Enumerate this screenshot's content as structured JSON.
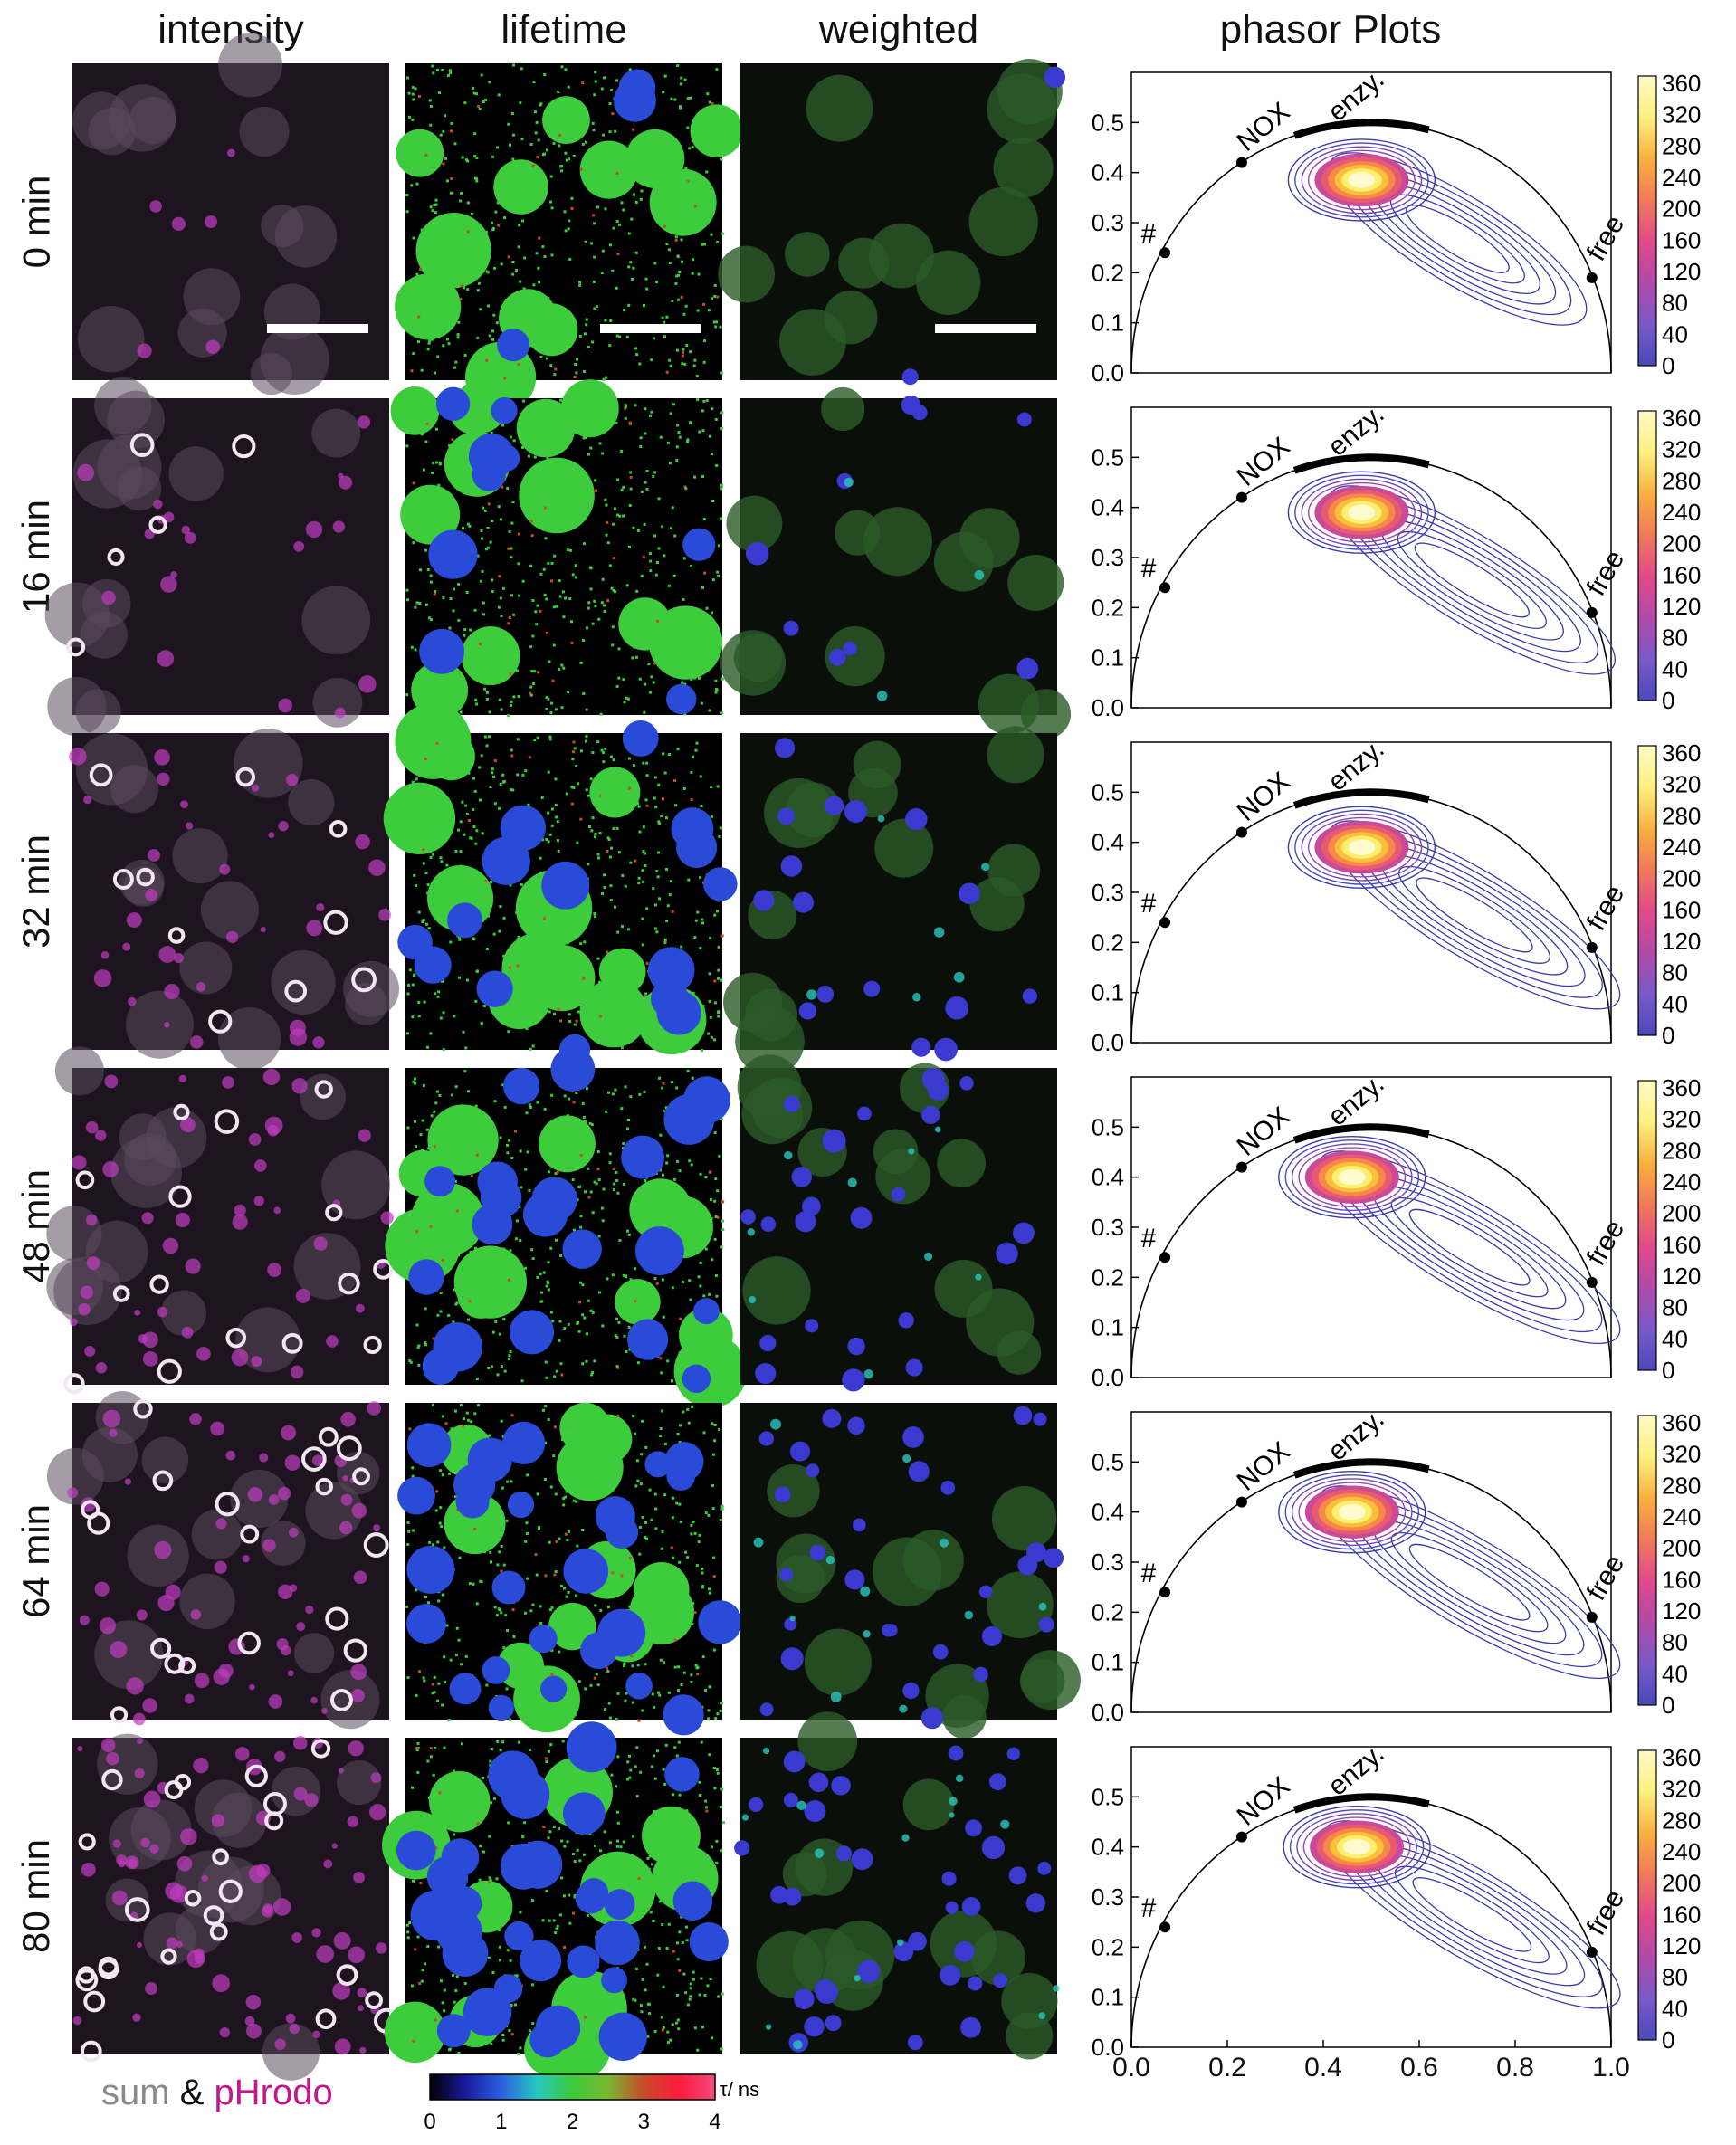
{
  "columns": [
    "intensity",
    "lifetime",
    "weighted",
    "phasor Plots"
  ],
  "rows": [
    {
      "label": "0 min",
      "stage": 0
    },
    {
      "label": "16 min",
      "stage": 1
    },
    {
      "label": "32 min",
      "stage": 2
    },
    {
      "label": "48 min",
      "stage": 3
    },
    {
      "label": "64 min",
      "stage": 4
    },
    {
      "label": "80 min",
      "stage": 5
    }
  ],
  "intensity_legend": {
    "sum": "sum",
    "amp": "&",
    "phrodo": "pHrodo",
    "sum_color": "#8a8a8a",
    "phrodo_color": "#c2188a"
  },
  "lifetime_colorbar": {
    "label": "τ/ ns",
    "ticks": [
      "0",
      "1",
      "2",
      "3",
      "4"
    ],
    "colors": [
      "#000000",
      "#1a1a9e",
      "#2a5fe0",
      "#28c8c0",
      "#3ccc3c",
      "#7ab832",
      "#c84a2a",
      "#ff1a3c",
      "#f04a7a"
    ]
  },
  "phasor": {
    "yticks": [
      "0.0",
      "0.1",
      "0.2",
      "0.3",
      "0.4",
      "0.5"
    ],
    "xticks": [
      "0.0",
      "0.2",
      "0.4",
      "0.6",
      "0.8",
      "1.0"
    ],
    "labels": {
      "nox": "NOX",
      "enzy": "enzy.",
      "free": "free",
      "hash": "#"
    },
    "points": [
      {
        "g": 0.07,
        "s": 0.24
      },
      {
        "g": 0.23,
        "s": 0.42
      },
      {
        "g": 0.96,
        "s": 0.19
      }
    ],
    "cbar_ticks": [
      "0",
      "40",
      "80",
      "120",
      "160",
      "200",
      "240",
      "280",
      "320",
      "360"
    ],
    "cbar_colors": [
      "#4a4ab8",
      "#7a5ac8",
      "#b04aa8",
      "#e04a8a",
      "#f07a5a",
      "#f8b040",
      "#fcf080",
      "#fffac8"
    ]
  },
  "chart_data": [
    {
      "type": "heatmap",
      "title": "phasor Plots",
      "panel": "0 min",
      "xlim": [
        0,
        1
      ],
      "ylim": [
        0,
        0.6
      ],
      "xticks": [
        0.0,
        0.2,
        0.4,
        0.6,
        0.8,
        1.0
      ],
      "yticks": [
        0.0,
        0.1,
        0.2,
        0.3,
        0.4,
        0.5
      ],
      "colorbar_range": [
        0,
        360
      ],
      "peak": {
        "g": 0.48,
        "s": 0.385
      },
      "tail_end": {
        "g": 0.88,
        "s": 0.15
      }
    },
    {
      "type": "heatmap",
      "title": "phasor Plots",
      "panel": "16 min",
      "xlim": [
        0,
        1
      ],
      "ylim": [
        0,
        0.6
      ],
      "xticks": [
        0.0,
        0.2,
        0.4,
        0.6,
        0.8,
        1.0
      ],
      "yticks": [
        0.0,
        0.1,
        0.2,
        0.3,
        0.4,
        0.5
      ],
      "colorbar_range": [
        0,
        360
      ],
      "peak": {
        "g": 0.48,
        "s": 0.39
      },
      "tail_end": {
        "g": 0.94,
        "s": 0.12
      }
    },
    {
      "type": "heatmap",
      "title": "phasor Plots",
      "panel": "32 min",
      "xlim": [
        0,
        1
      ],
      "ylim": [
        0,
        0.6
      ],
      "xticks": [
        0.0,
        0.2,
        0.4,
        0.6,
        0.8,
        1.0
      ],
      "yticks": [
        0.0,
        0.1,
        0.2,
        0.3,
        0.4,
        0.5
      ],
      "colorbar_range": [
        0,
        360
      ],
      "peak": {
        "g": 0.48,
        "s": 0.39
      },
      "tail_end": {
        "g": 0.95,
        "s": 0.12
      }
    },
    {
      "type": "heatmap",
      "title": "phasor Plots",
      "panel": "48 min",
      "xlim": [
        0,
        1
      ],
      "ylim": [
        0,
        0.6
      ],
      "xticks": [
        0.0,
        0.2,
        0.4,
        0.6,
        0.8,
        1.0
      ],
      "yticks": [
        0.0,
        0.1,
        0.2,
        0.3,
        0.4,
        0.5
      ],
      "colorbar_range": [
        0,
        360
      ],
      "peak": {
        "g": 0.46,
        "s": 0.4
      },
      "tail_end": {
        "g": 0.95,
        "s": 0.12
      }
    },
    {
      "type": "heatmap",
      "title": "phasor Plots",
      "panel": "64 min",
      "xlim": [
        0,
        1
      ],
      "ylim": [
        0,
        0.6
      ],
      "xticks": [
        0.0,
        0.2,
        0.4,
        0.6,
        0.8,
        1.0
      ],
      "yticks": [
        0.0,
        0.1,
        0.2,
        0.3,
        0.4,
        0.5
      ],
      "colorbar_range": [
        0,
        360
      ],
      "peak": {
        "g": 0.46,
        "s": 0.4
      },
      "tail_end": {
        "g": 0.95,
        "s": 0.12
      }
    },
    {
      "type": "heatmap",
      "title": "phasor Plots",
      "panel": "80 min",
      "xlim": [
        0,
        1
      ],
      "ylim": [
        0,
        0.6
      ],
      "xticks": [
        0.0,
        0.2,
        0.4,
        0.6,
        0.8,
        1.0
      ],
      "yticks": [
        0.0,
        0.1,
        0.2,
        0.3,
        0.4,
        0.5
      ],
      "colorbar_range": [
        0,
        360
      ],
      "peak": {
        "g": 0.47,
        "s": 0.4
      },
      "tail_end": {
        "g": 0.95,
        "s": 0.13
      }
    }
  ]
}
